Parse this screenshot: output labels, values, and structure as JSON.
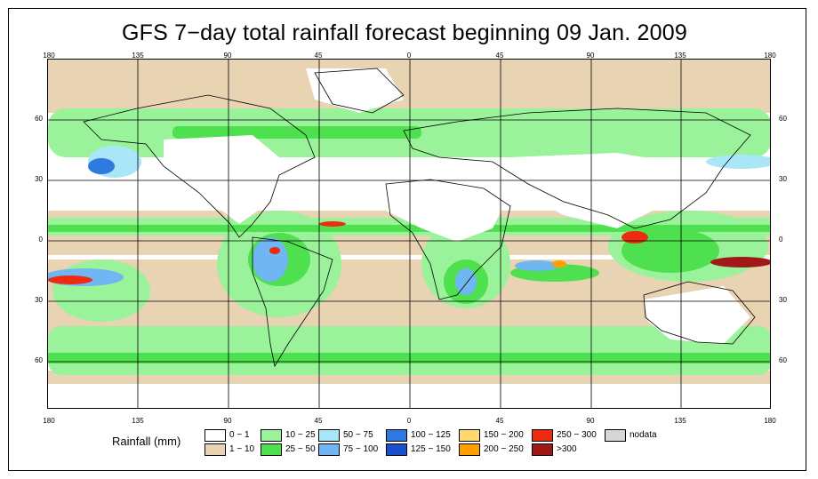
{
  "title": "GFS 7−day total rainfall forecast beginning 09 Jan. 2009",
  "map": {
    "lon_labels": [
      "180",
      "135",
      "90",
      "45",
      "0",
      "45",
      "90",
      "135",
      "180"
    ],
    "lat_labels": [
      "60",
      "30",
      "0",
      "30",
      "60"
    ]
  },
  "legend": {
    "title": "Rainfall (mm)",
    "items": [
      {
        "label": "0 − 1",
        "color": "#ffffff"
      },
      {
        "label": "1 − 10",
        "color": "#e8d3b3"
      },
      {
        "label": "10 − 25",
        "color": "#9af29a"
      },
      {
        "label": "25 − 50",
        "color": "#4fe04f"
      },
      {
        "label": "50 − 75",
        "color": "#a9e6f8"
      },
      {
        "label": "75 − 100",
        "color": "#6fb6f2"
      },
      {
        "label": "100 − 125",
        "color": "#2f79e0"
      },
      {
        "label": "125 − 150",
        "color": "#1a4fd0"
      },
      {
        "label": "150 − 200",
        "color": "#ffd870"
      },
      {
        "label": "200 − 250",
        "color": "#ff9f00"
      },
      {
        "label": "250 − 300",
        "color": "#ee2a10"
      },
      {
        "label": ">300",
        "color": "#a01818"
      },
      {
        "label": "nodata",
        "color": "#d6d6d6"
      }
    ]
  }
}
